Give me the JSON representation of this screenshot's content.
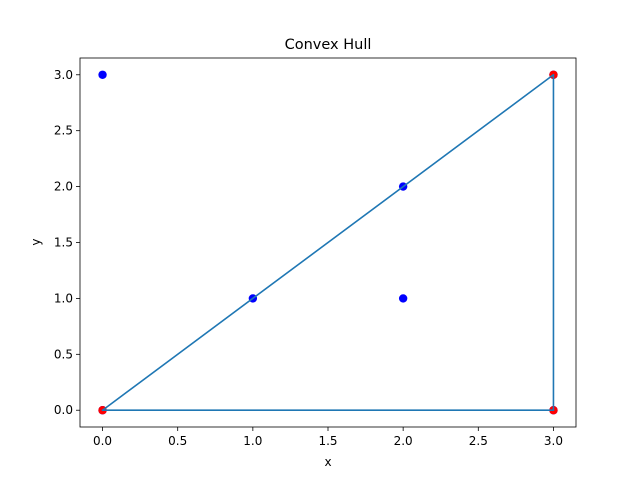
{
  "chart_data": {
    "type": "scatter",
    "title": "Convex Hull",
    "xlabel": "x",
    "ylabel": "y",
    "xlim": [
      -0.15,
      3.15
    ],
    "ylim": [
      -0.15,
      3.15
    ],
    "xticks": [
      0.0,
      0.5,
      1.0,
      1.5,
      2.0,
      2.5,
      3.0
    ],
    "xtick_labels": [
      "0.0",
      "0.5",
      "1.0",
      "1.5",
      "2.0",
      "2.5",
      "3.0"
    ],
    "yticks": [
      0.0,
      0.5,
      1.0,
      1.5,
      2.0,
      2.5,
      3.0
    ],
    "ytick_labels": [
      "0.0",
      "0.5",
      "1.0",
      "1.5",
      "2.0",
      "2.5",
      "3.0"
    ],
    "grid": false,
    "points": [
      {
        "x": 0,
        "y": 3
      },
      {
        "x": 1,
        "y": 1
      },
      {
        "x": 2,
        "y": 2
      },
      {
        "x": 2,
        "y": 1
      },
      {
        "x": 0,
        "y": 0
      },
      {
        "x": 3,
        "y": 0
      },
      {
        "x": 3,
        "y": 3
      }
    ],
    "hull_vertices": [
      {
        "x": 0,
        "y": 0
      },
      {
        "x": 3,
        "y": 0
      },
      {
        "x": 3,
        "y": 3
      }
    ],
    "hull_path": [
      {
        "x": 0,
        "y": 0
      },
      {
        "x": 3,
        "y": 0
      },
      {
        "x": 3,
        "y": 3
      },
      {
        "x": 0,
        "y": 0
      }
    ],
    "colors": {
      "points": "#0000ff",
      "hull_vertices": "#ff0000",
      "hull_line": "#1f77b4",
      "axes": "#000000"
    }
  }
}
